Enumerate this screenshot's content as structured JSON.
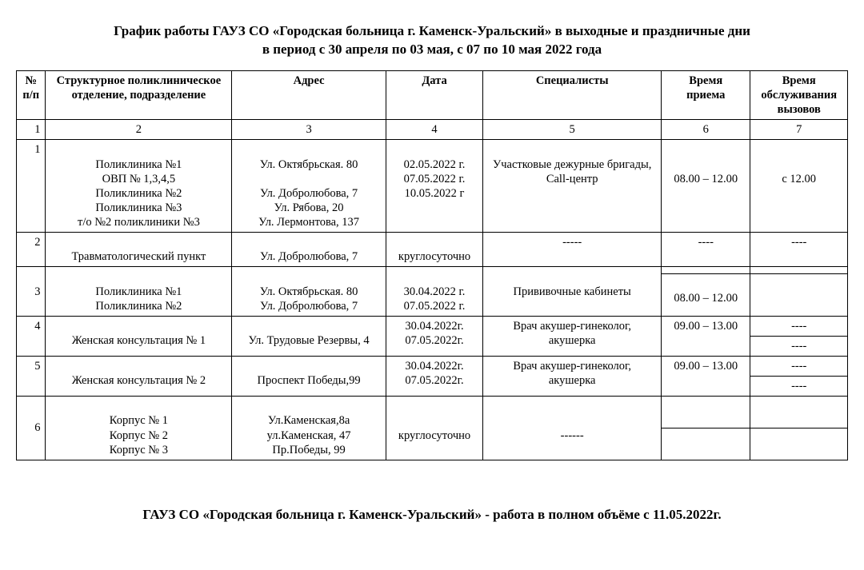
{
  "title": "График работы ГАУЗ СО «Городская больница г. Каменск-Уральский» в выходные и праздничные дни\nв период с 30 апреля по 03 мая, с 07 по 10 мая 2022 года",
  "columns": {
    "c1": "№\nп/п",
    "c2": "Структурное поликлиническое\nотделение, подразделение",
    "c3": "Адрес",
    "c4": "Дата",
    "c5": "Специалисты",
    "c6": "Время\nприема",
    "c7": "Время\nобслуживания\nвызовов"
  },
  "colnums": {
    "c1": "1",
    "c2": "2",
    "c3": "3",
    "c4": "4",
    "c5": "5",
    "c6": "6",
    "c7": "7"
  },
  "row1": {
    "num": "1",
    "dept": "\nПоликлиника №1\nОВП № 1,3,4,5\nПоликлиника №2\nПоликлиника №3\nт/о №2 поликлиники №3",
    "addr": "\nУл. Октябрьская. 80\n\nУл. Добролюбова, 7\nУл. Рябова, 20\nУл. Лермонтова, 137",
    "date": "\n02.05.2022 г.\n07.05.2022 г.\n10.05.2022 г",
    "spec": "\nУчастковые дежурные бригады,\nCall-центр",
    "time_recv": "\n\n08.00 – 12.00",
    "time_call": "\n\nс 12.00"
  },
  "row2": {
    "num": "2",
    "dept": "\nТравматологический пункт",
    "addr": "\nУл. Добролюбова, 7",
    "date": "\nкруглосуточно",
    "spec": "-----",
    "time_recv": "----",
    "time_call": "----"
  },
  "row3": {
    "num": "3",
    "dept": "\nПоликлиника №1\nПоликлиника №2",
    "addr": "\nУл. Октябрьская. 80\nУл. Добролюбова, 7",
    "date": "\n30.04.2022 г.\n07.05.2022 г.",
    "spec": "Прививочные кабинеты",
    "time_recv_a": "",
    "time_recv_b": "\n08.00 – 12.00",
    "time_call_a": "",
    "time_call_b": ""
  },
  "row4": {
    "num": "4",
    "dept": "\nЖенская консультация № 1",
    "addr": "\nУл. Трудовые Резервы, 4",
    "date": "30.04.2022г.\n07.05.2022г.",
    "spec": "Врач акушер-гинеколог,\nакушерка",
    "time_recv": "09.00 – 13.00",
    "time_call_a": "----",
    "time_call_b": "----"
  },
  "row5": {
    "num": "5",
    "dept": "\nЖенская консультация № 2",
    "addr": "\nПроспект Победы,99",
    "date": "30.04.2022г.\n07.05.2022г.",
    "spec": "Врач акушер-гинеколог,\nакушерка",
    "time_recv": "09.00 – 13.00",
    "time_call_a": "----",
    "time_call_b": "----"
  },
  "row6": {
    "num": "6",
    "dept": "\nКорпус № 1\nКорпус № 2\nКорпус № 3",
    "addr": "\nУл.Каменская,8а\nул.Каменская, 47\nПр.Победы, 99",
    "date": "\n\nкруглосуточно",
    "spec": "\n\n------",
    "time_recv_a": "",
    "time_recv_b": "",
    "time_call_a": "",
    "time_call_b": ""
  },
  "footer": "ГАУЗ СО «Городская больница г. Каменск-Уральский» - работа в полном объёме с 11.05.2022г."
}
